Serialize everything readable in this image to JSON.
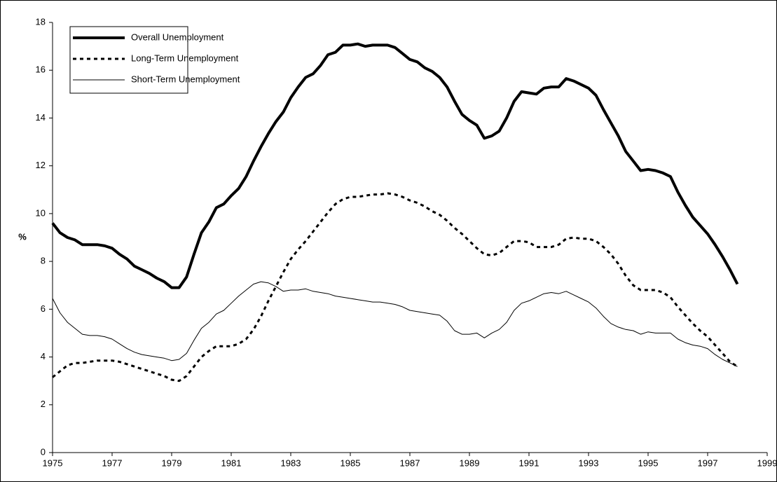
{
  "chart_data": {
    "type": "line",
    "y_label": "%",
    "xlim": [
      1975,
      1999
    ],
    "xticks": [
      1975,
      1977,
      1979,
      1981,
      1983,
      1985,
      1987,
      1989,
      1991,
      1993,
      1995,
      1997,
      1999
    ],
    "ylim": [
      0,
      18
    ],
    "yticks": [
      0,
      2,
      4,
      6,
      8,
      10,
      12,
      14,
      16,
      18
    ],
    "legend": "top-left",
    "x": [
      1975,
      1975.25,
      1975.5,
      1975.75,
      1976,
      1976.25,
      1976.5,
      1976.75,
      1977,
      1977.25,
      1977.5,
      1977.75,
      1978,
      1978.25,
      1978.5,
      1978.75,
      1979,
      1979.25,
      1979.5,
      1979.75,
      1980,
      1980.25,
      1980.5,
      1980.75,
      1981,
      1981.25,
      1981.5,
      1981.75,
      1982,
      1982.25,
      1982.5,
      1982.75,
      1983,
      1983.25,
      1983.5,
      1983.75,
      1984,
      1984.25,
      1984.5,
      1984.75,
      1985,
      1985.25,
      1985.5,
      1985.75,
      1986,
      1986.25,
      1986.5,
      1986.75,
      1987,
      1987.25,
      1987.5,
      1987.75,
      1988,
      1988.25,
      1988.5,
      1988.75,
      1989,
      1989.25,
      1989.5,
      1989.75,
      1990,
      1990.25,
      1990.5,
      1990.75,
      1991,
      1991.25,
      1991.5,
      1991.75,
      1992,
      1992.25,
      1992.5,
      1992.75,
      1993,
      1993.25,
      1993.5,
      1993.75,
      1994,
      1994.25,
      1994.5,
      1994.75,
      1995,
      1995.25,
      1995.5,
      1995.75,
      1996,
      1996.25,
      1996.5,
      1996.75,
      1997,
      1997.25,
      1997.5,
      1997.75,
      1998
    ],
    "series": [
      {
        "name": "Overall Unemployment",
        "color": "#000000",
        "line_width": 4,
        "dash": false,
        "values": [
          9.6,
          9.2,
          9.0,
          8.9,
          8.7,
          8.7,
          8.7,
          8.65,
          8.55,
          8.3,
          8.1,
          7.8,
          7.65,
          7.5,
          7.3,
          7.15,
          6.9,
          6.9,
          7.35,
          8.3,
          9.2,
          9.65,
          10.25,
          10.4,
          10.75,
          11.05,
          11.55,
          12.2,
          12.8,
          13.35,
          13.85,
          14.25,
          14.85,
          15.3,
          15.7,
          15.85,
          16.2,
          16.65,
          16.75,
          17.05,
          17.05,
          17.1,
          17.0,
          17.05,
          17.05,
          17.05,
          16.95,
          16.7,
          16.45,
          16.35,
          16.1,
          15.95,
          15.7,
          15.3,
          14.7,
          14.15,
          13.9,
          13.7,
          13.15,
          13.25,
          13.45,
          14.0,
          14.7,
          15.1,
          15.05,
          15.0,
          15.25,
          15.3,
          15.3,
          15.65,
          15.55,
          15.4,
          15.25,
          14.95,
          14.35,
          13.8,
          13.25,
          12.6,
          12.2,
          11.8,
          11.85,
          11.8,
          11.7,
          11.55,
          10.9,
          10.35,
          9.85,
          9.5,
          9.15,
          8.7,
          8.2,
          7.65,
          7.05
        ]
      },
      {
        "name": "Long-Term Unemployment",
        "color": "#000000",
        "line_width": 3,
        "dash": true,
        "values": [
          3.15,
          3.4,
          3.65,
          3.75,
          3.75,
          3.8,
          3.85,
          3.85,
          3.85,
          3.8,
          3.7,
          3.6,
          3.5,
          3.4,
          3.3,
          3.2,
          3.05,
          3.0,
          3.2,
          3.6,
          4.0,
          4.25,
          4.45,
          4.45,
          4.45,
          4.55,
          4.75,
          5.15,
          5.7,
          6.35,
          6.95,
          7.55,
          8.1,
          8.5,
          8.85,
          9.25,
          9.65,
          10.05,
          10.4,
          10.6,
          10.7,
          10.7,
          10.75,
          10.8,
          10.8,
          10.85,
          10.8,
          10.7,
          10.55,
          10.45,
          10.3,
          10.1,
          9.95,
          9.7,
          9.4,
          9.15,
          8.85,
          8.55,
          8.3,
          8.25,
          8.35,
          8.6,
          8.85,
          8.85,
          8.8,
          8.6,
          8.6,
          8.6,
          8.7,
          8.95,
          9.0,
          8.95,
          8.95,
          8.85,
          8.6,
          8.3,
          7.9,
          7.4,
          7.0,
          6.8,
          6.8,
          6.8,
          6.7,
          6.5,
          6.1,
          5.75,
          5.4,
          5.1,
          4.85,
          4.5,
          4.15,
          3.8,
          3.6
        ]
      },
      {
        "name": "Short-Term Unemployment",
        "color": "#000000",
        "line_width": 1,
        "dash": false,
        "values": [
          6.45,
          5.85,
          5.45,
          5.2,
          4.95,
          4.9,
          4.9,
          4.85,
          4.75,
          4.55,
          4.35,
          4.2,
          4.1,
          4.05,
          4.0,
          3.95,
          3.85,
          3.9,
          4.15,
          4.7,
          5.2,
          5.45,
          5.8,
          5.95,
          6.25,
          6.55,
          6.8,
          7.05,
          7.15,
          7.1,
          6.95,
          6.75,
          6.8,
          6.8,
          6.85,
          6.75,
          6.7,
          6.65,
          6.55,
          6.5,
          6.45,
          6.4,
          6.35,
          6.3,
          6.3,
          6.25,
          6.2,
          6.1,
          5.95,
          5.9,
          5.85,
          5.8,
          5.75,
          5.5,
          5.1,
          4.95,
          4.95,
          5.0,
          4.8,
          5.0,
          5.15,
          5.45,
          5.95,
          6.25,
          6.35,
          6.5,
          6.65,
          6.7,
          6.65,
          6.75,
          6.6,
          6.45,
          6.3,
          6.05,
          5.7,
          5.4,
          5.25,
          5.15,
          5.1,
          4.95,
          5.05,
          5.0,
          5.0,
          5.0,
          4.75,
          4.6,
          4.5,
          4.45,
          4.35,
          4.1,
          3.9,
          3.75,
          3.6
        ]
      }
    ]
  }
}
